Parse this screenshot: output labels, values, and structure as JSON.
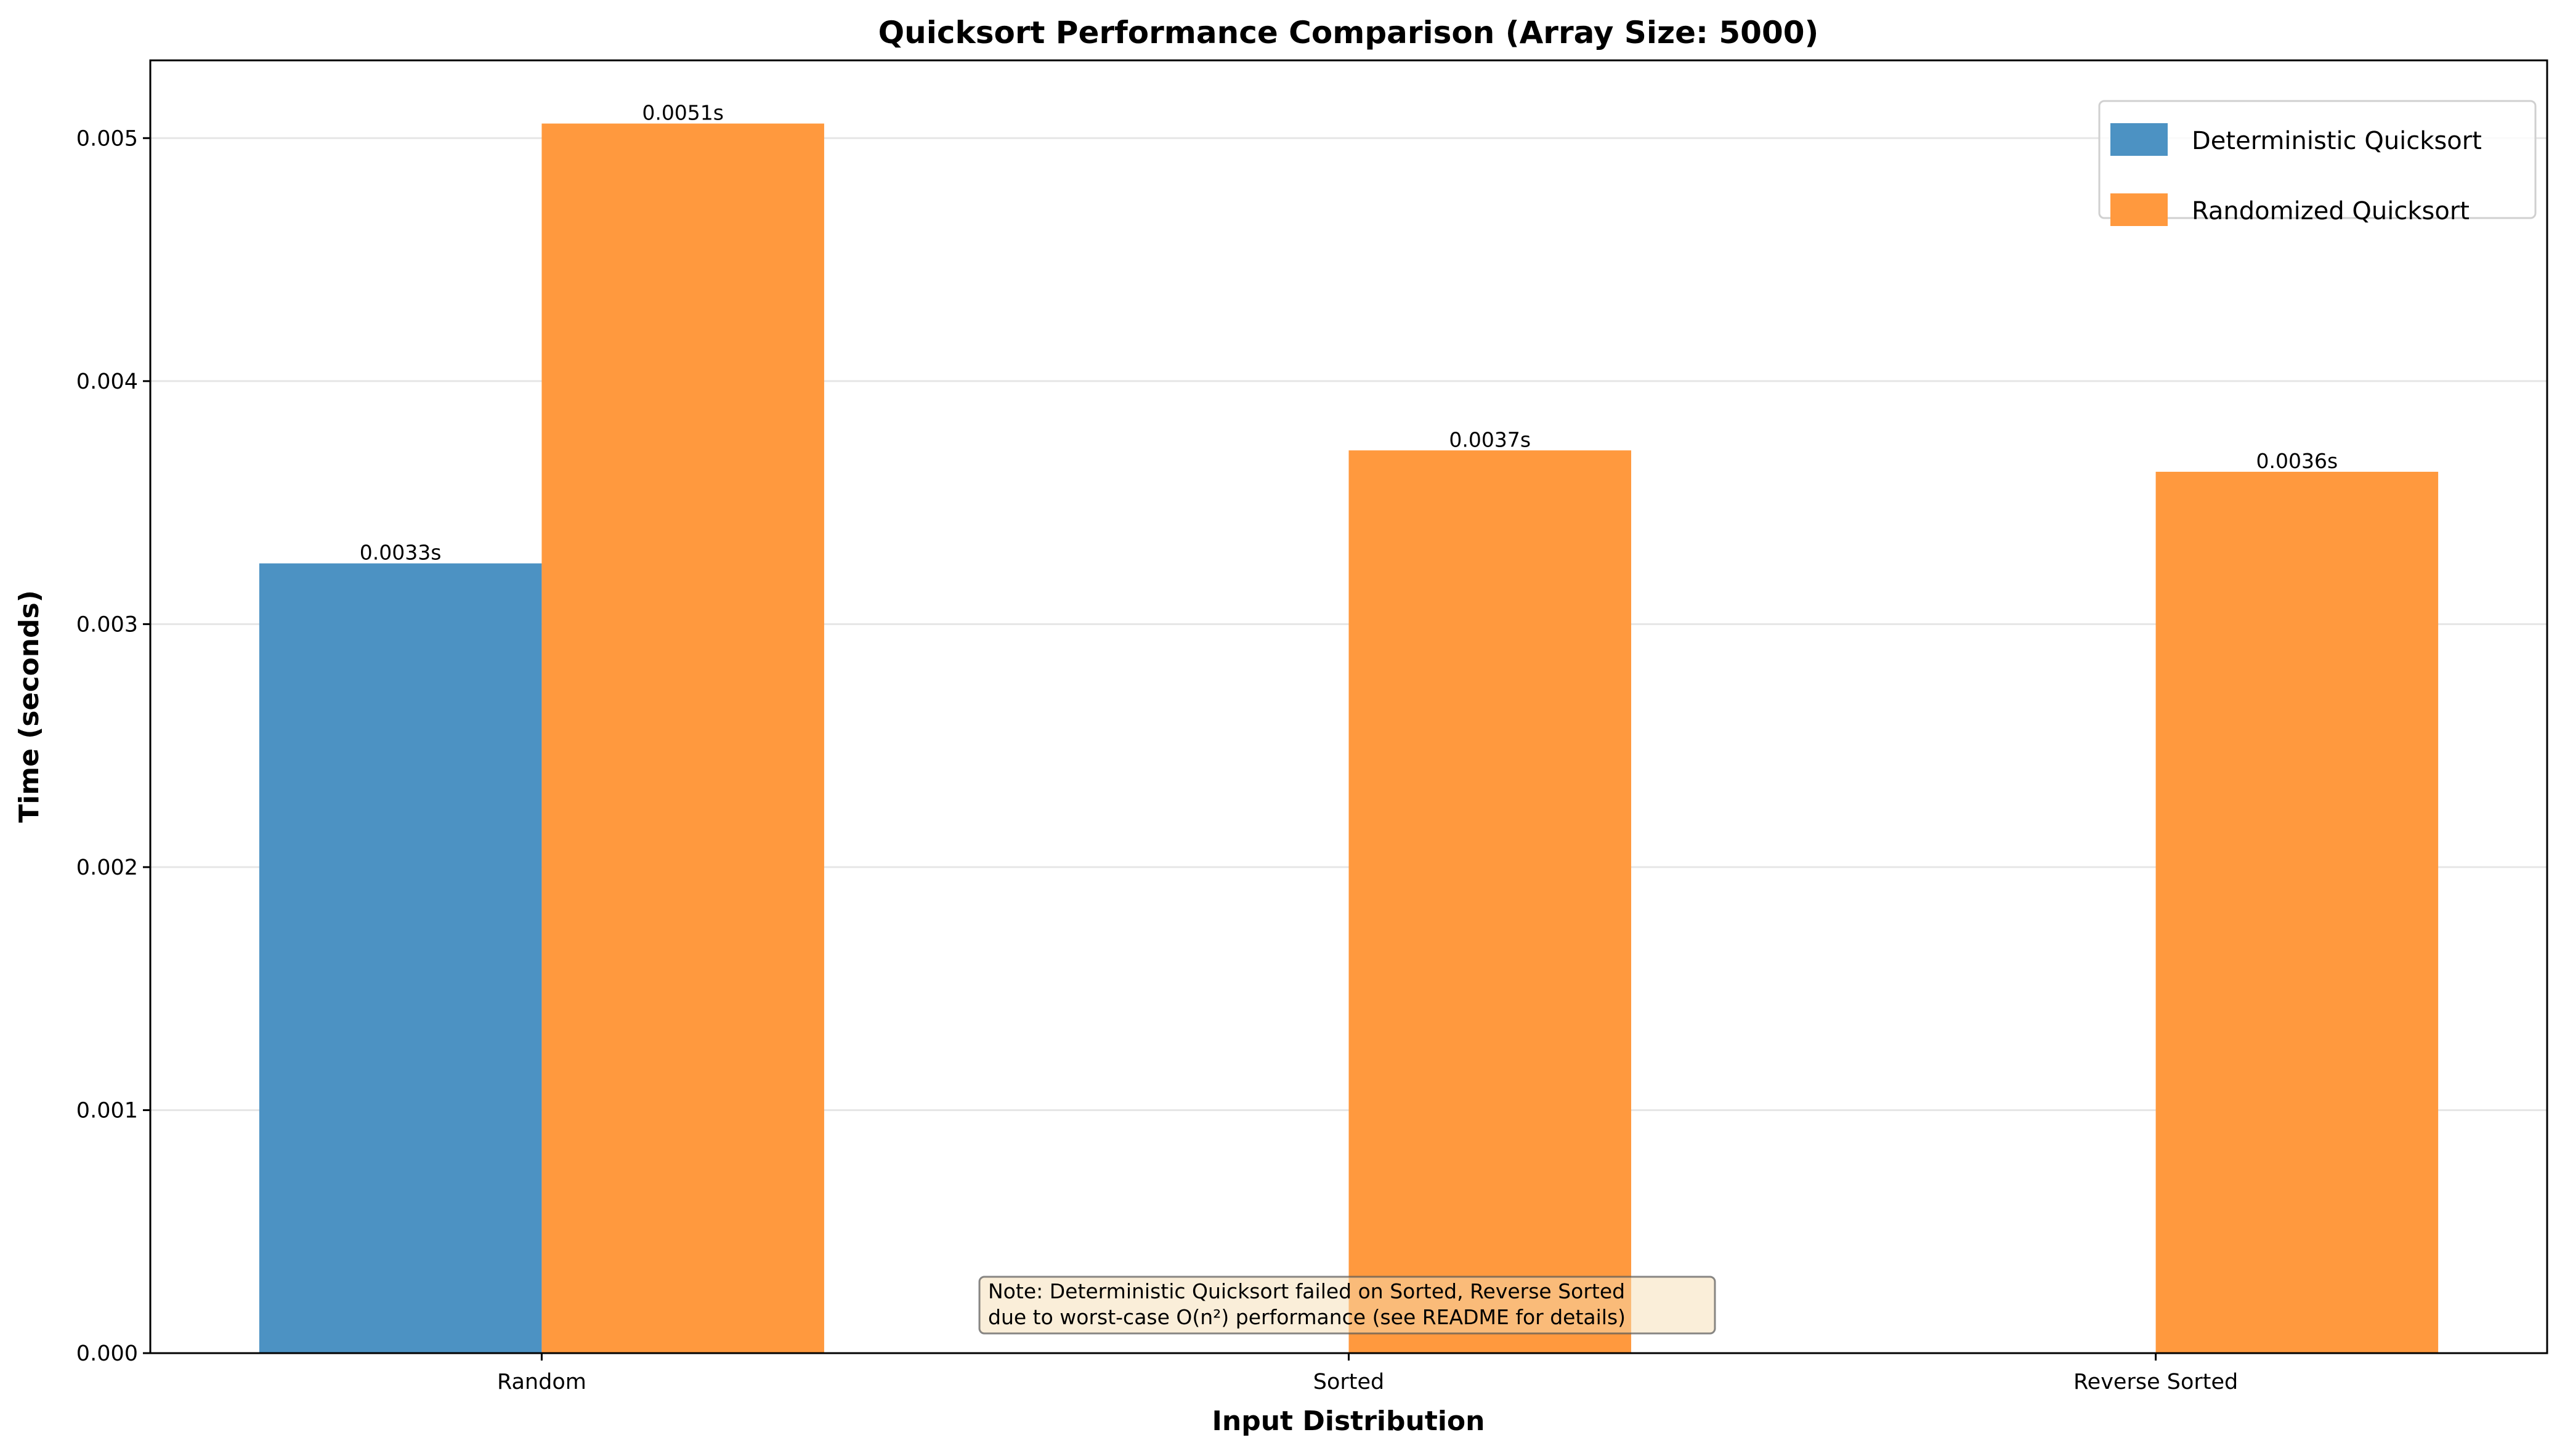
{
  "chart_data": {
    "type": "bar",
    "title": "Quicksort Performance Comparison (Array Size: 5000)",
    "xlabel": "Input Distribution",
    "ylabel": "Time (seconds)",
    "categories": [
      "Random",
      "Sorted",
      "Reverse Sorted"
    ],
    "series": [
      {
        "name": "Deterministic Quicksort",
        "color": "#4c92c3",
        "values": [
          0.00325,
          null,
          null
        ],
        "labels": [
          "0.0033s",
          null,
          null
        ]
      },
      {
        "name": "Randomized Quicksort",
        "color": "#ff993e",
        "values": [
          0.00506,
          0.003715,
          0.003627
        ],
        "labels": [
          "0.0051s",
          "0.0037s",
          "0.0036s"
        ]
      }
    ],
    "ylim": [
      0,
      0.00532
    ],
    "yticks": [
      "0.000",
      "0.001",
      "0.002",
      "0.003",
      "0.004",
      "0.005"
    ],
    "grid": "y",
    "legend_position": "top-right",
    "annotation": {
      "line1": "Note: Deterministic Quicksort failed on Sorted, Reverse Sorted",
      "line2": "due to worst-case O(n²) performance (see README for details)",
      "background": "#f5deb3"
    }
  }
}
